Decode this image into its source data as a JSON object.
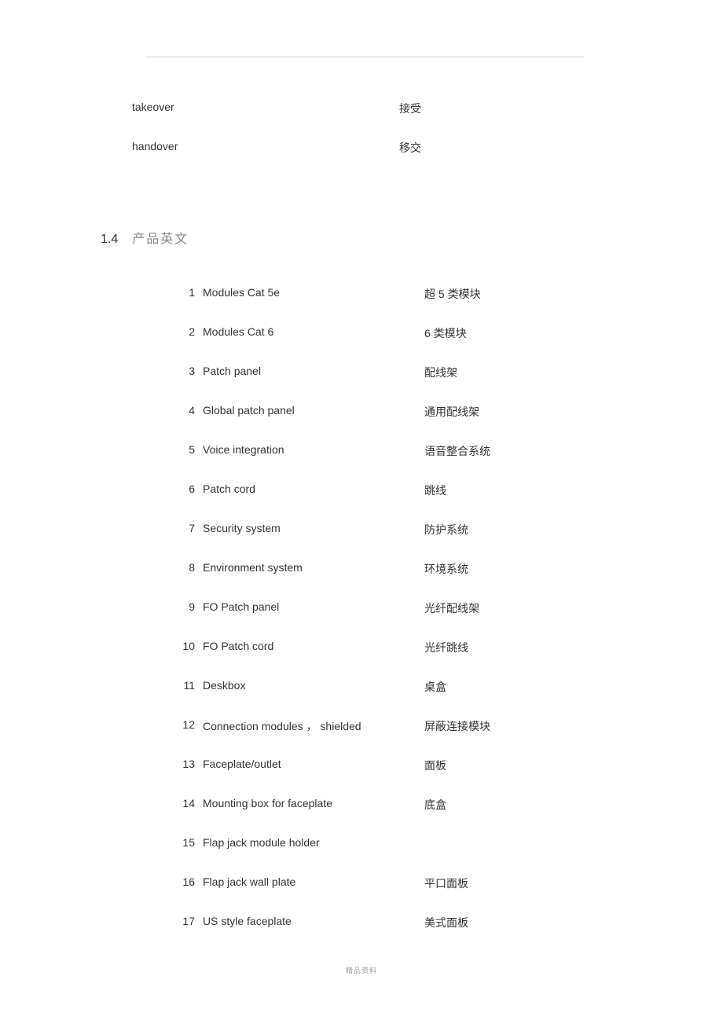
{
  "intro": [
    {
      "en": "takeover",
      "cn": "接受"
    },
    {
      "en": "handover",
      "cn": "移交"
    }
  ],
  "section": {
    "number": "1.4",
    "title": "产品英文"
  },
  "products": [
    {
      "num": "1",
      "en": "Modules Cat 5e",
      "cn": "超 5 类模块"
    },
    {
      "num": "2",
      "en": "Modules Cat 6",
      "cn": "6 类模块"
    },
    {
      "num": "3",
      "en": "Patch panel",
      "cn": "配线架"
    },
    {
      "num": "4",
      "en": "Global patch panel",
      "cn": "通用配线架"
    },
    {
      "num": "5",
      "en": "Voice integration",
      "cn": "语音整合系统"
    },
    {
      "num": "6",
      "en": "Patch cord",
      "cn": "跳线"
    },
    {
      "num": "7",
      "en": "Security system",
      "cn": "防护系统"
    },
    {
      "num": "8",
      "en": "Environment system",
      "cn": "环境系统"
    },
    {
      "num": "9",
      "en": "FO Patch panel",
      "cn": "光纤配线架"
    },
    {
      "num": "10",
      "en": "FO Patch cord",
      "cn": "光纤跳线"
    },
    {
      "num": "11",
      "en": "Deskbox",
      "cn": "桌盒"
    },
    {
      "num": "12",
      "en": "Connection modules   ， shielded",
      "cn": "屏蔽连接模块"
    },
    {
      "num": "13",
      "en": "Faceplate/outlet",
      "cn": "面板"
    },
    {
      "num": "14",
      "en": "Mounting box for faceplate",
      "cn": "底盒"
    },
    {
      "num": "15",
      "en": "Flap jack module holder",
      "cn": ""
    },
    {
      "num": "16",
      "en": "Flap jack wall plate",
      "cn": "平口面板"
    },
    {
      "num": "17",
      "en": "US style faceplate",
      "cn": "美式面板"
    }
  ],
  "footer": "精品资料"
}
